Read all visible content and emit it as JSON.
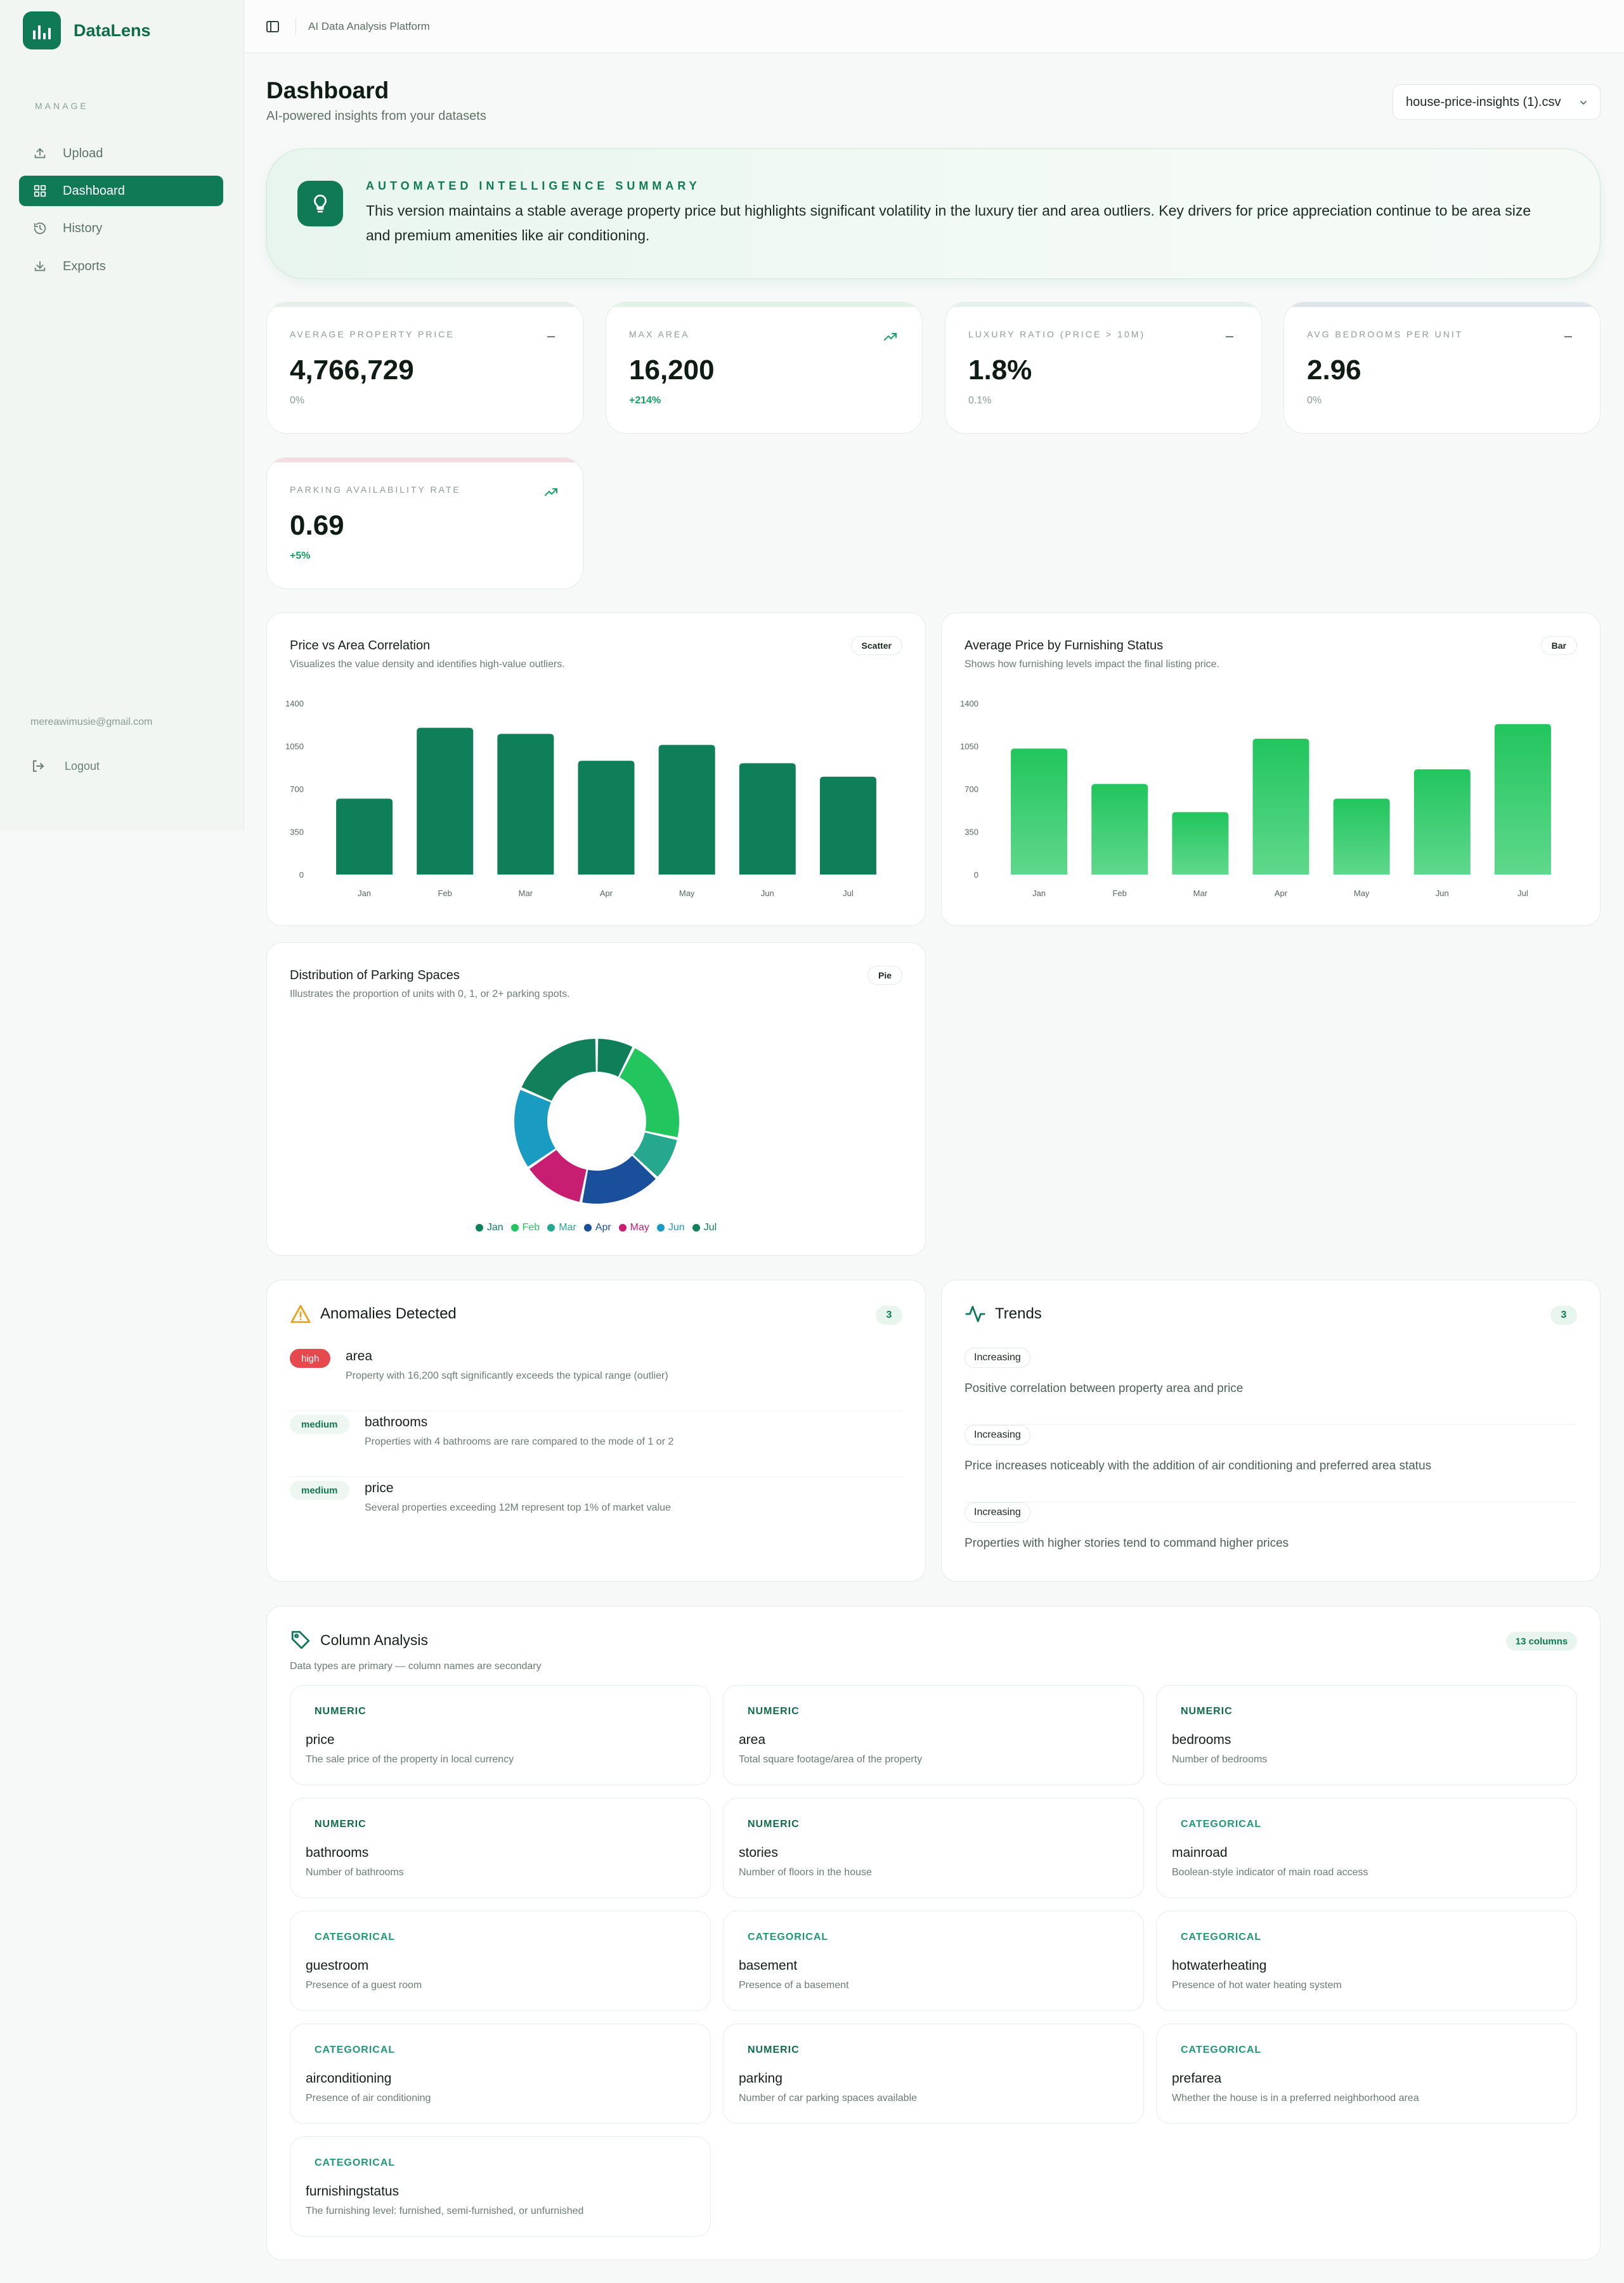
{
  "app": {
    "name": "DataLens",
    "platform_label": "AI Data Analysis Platform"
  },
  "sidebar": {
    "section_title": "MANAGE",
    "items": [
      {
        "label": "Upload",
        "icon": "upload-icon"
      },
      {
        "label": "Dashboard",
        "icon": "grid-icon",
        "active": true
      },
      {
        "label": "History",
        "icon": "history-icon"
      },
      {
        "label": "Exports",
        "icon": "download-icon"
      }
    ],
    "user_email": "mereawimusie@gmail.com",
    "logout_label": "Logout"
  },
  "header": {
    "title": "Dashboard",
    "subtitle": "AI-powered insights from your datasets",
    "dataset_selected": "house-price-insights (1).csv"
  },
  "summary": {
    "label": "AUTOMATED INTELLIGENCE SUMMARY",
    "text": "This version maintains a stable average property price but highlights significant volatility in the luxury tier and area outliers. Key drivers for price appreciation continue to be area size and premium amenities like air conditioning."
  },
  "kpis": [
    {
      "label": "AVERAGE PROPERTY PRICE",
      "value": "4,766,729",
      "delta": "0%",
      "trend": "flat",
      "accent": "#e6efe9"
    },
    {
      "label": "MAX AREA",
      "value": "16,200",
      "delta": "+214%",
      "trend": "up",
      "accent": "#dff3e6"
    },
    {
      "label": "LUXURY RATIO (PRICE > 10M)",
      "value": "1.8%",
      "delta": "0.1%",
      "trend": "flat",
      "accent": "#e4f1ed"
    },
    {
      "label": "AVG BEDROOMS PER UNIT",
      "value": "2.96",
      "delta": "0%",
      "trend": "flat",
      "accent": "#dde5ec"
    },
    {
      "label": "PARKING AVAILABILITY RATE",
      "value": "0.69",
      "delta": "+5%",
      "trend": "up",
      "accent": "#f6dce2"
    }
  ],
  "charts": {
    "scatter": {
      "title": "Price vs Area Correlation",
      "subtitle": "Visualizes the value density and identifies high-value outliers.",
      "badge": "Scatter"
    },
    "bar": {
      "title": "Average Price by Furnishing Status",
      "subtitle": "Shows how furnishing levels impact the final listing price.",
      "badge": "Bar"
    },
    "pie": {
      "title": "Distribution of Parking Spaces",
      "subtitle": "Illustrates the proportion of units with 0, 1, or 2+ parking spots.",
      "badge": "Pie"
    }
  },
  "chart_data": [
    {
      "type": "bar",
      "categories": [
        "Jan",
        "Feb",
        "Mar",
        "Apr",
        "May",
        "Jun",
        "Jul"
      ],
      "values": [
        620,
        1200,
        1150,
        930,
        1060,
        910,
        800
      ],
      "yticks": [
        0,
        350,
        700,
        1050,
        1400
      ],
      "ylim": [
        0,
        1400
      ],
      "color": "#0f7f59"
    },
    {
      "type": "bar",
      "categories": [
        "Jan",
        "Feb",
        "Mar",
        "Apr",
        "May",
        "Jun",
        "Jul"
      ],
      "values": [
        1030,
        740,
        510,
        1110,
        620,
        860,
        1230
      ],
      "yticks": [
        0,
        350,
        700,
        1050,
        1400
      ],
      "ylim": [
        0,
        1400
      ],
      "color": "#22c560"
    },
    {
      "type": "pie",
      "categories": [
        "Jan",
        "Feb",
        "Mar",
        "Apr",
        "May",
        "Jun",
        "Jul"
      ],
      "values": [
        6,
        17,
        7,
        13,
        10,
        13,
        15
      ],
      "colors": [
        "#0f7f59",
        "#22c55e",
        "#25a88e",
        "#1a4f9c",
        "#c81e72",
        "#1a9cc2",
        "#12805b"
      ]
    }
  ],
  "anomalies": {
    "title": "Anomalies Detected",
    "count": "3",
    "items": [
      {
        "severity": "high",
        "column": "area",
        "description": "Property with 16,200 sqft significantly exceeds the typical range (outlier)"
      },
      {
        "severity": "medium",
        "column": "bathrooms",
        "description": "Properties with 4 bathrooms are rare compared to the mode of 1 or 2"
      },
      {
        "severity": "medium",
        "column": "price",
        "description": "Several properties exceeding 12M represent top 1% of market value"
      }
    ]
  },
  "trends": {
    "title": "Trends",
    "count": "3",
    "items": [
      {
        "direction": "Increasing",
        "description": "Positive correlation between property area and price"
      },
      {
        "direction": "Increasing",
        "description": "Price increases noticeably with the addition of air conditioning and preferred area status"
      },
      {
        "direction": "Increasing",
        "description": "Properties with higher stories tend to command higher prices"
      }
    ]
  },
  "columns": {
    "title": "Column Analysis",
    "subtitle": "Data types are primary — column names are secondary",
    "count_label": "13 columns",
    "items": [
      {
        "type": "NUMERIC",
        "name": "price",
        "description": "The sale price of the property in local currency"
      },
      {
        "type": "NUMERIC",
        "name": "area",
        "description": "Total square footage/area of the property"
      },
      {
        "type": "NUMERIC",
        "name": "bedrooms",
        "description": "Number of bedrooms"
      },
      {
        "type": "NUMERIC",
        "name": "bathrooms",
        "description": "Number of bathrooms"
      },
      {
        "type": "NUMERIC",
        "name": "stories",
        "description": "Number of floors in the house"
      },
      {
        "type": "CATEGORICAL",
        "name": "mainroad",
        "description": "Boolean-style indicator of main road access"
      },
      {
        "type": "CATEGORICAL",
        "name": "guestroom",
        "description": "Presence of a guest room"
      },
      {
        "type": "CATEGORICAL",
        "name": "basement",
        "description": "Presence of a basement"
      },
      {
        "type": "CATEGORICAL",
        "name": "hotwaterheating",
        "description": "Presence of hot water heating system"
      },
      {
        "type": "CATEGORICAL",
        "name": "airconditioning",
        "description": "Presence of air conditioning"
      },
      {
        "type": "NUMERIC",
        "name": "parking",
        "description": "Number of car parking spaces available"
      },
      {
        "type": "CATEGORICAL",
        "name": "prefarea",
        "description": "Whether the house is in a preferred neighborhood area"
      },
      {
        "type": "CATEGORICAL",
        "name": "furnishingstatus",
        "description": "The furnishing level: furnished, semi-furnished, or unfurnished"
      }
    ]
  }
}
